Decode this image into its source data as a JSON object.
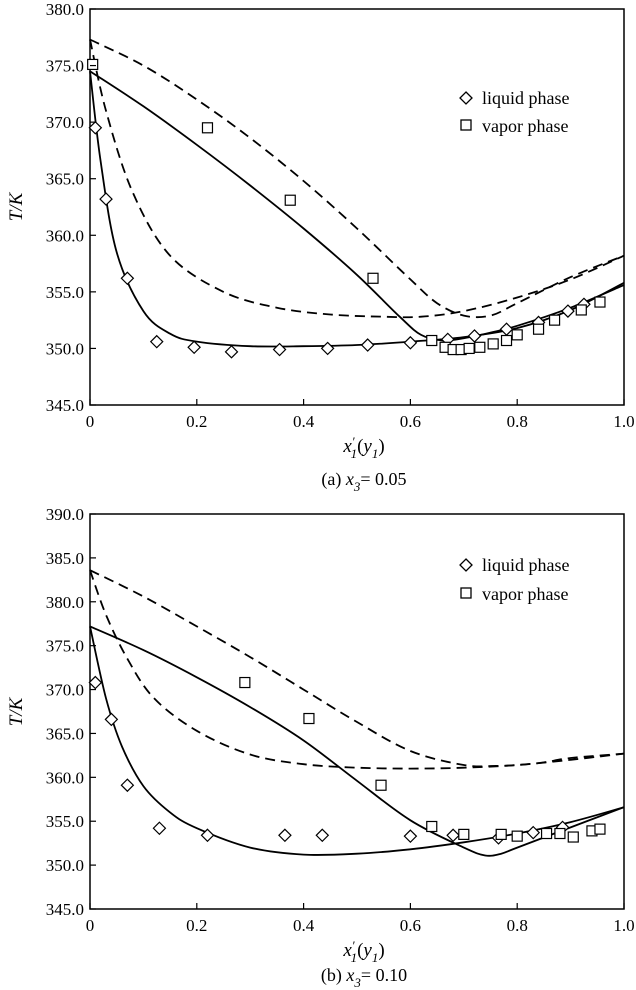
{
  "chart_data": [
    {
      "type": "line",
      "panel_caption": {
        "prefix": "(a) ",
        "var": "x",
        "sub": "3",
        "value": "= 0.05"
      },
      "xlabel": {
        "main": "x",
        "prime": "′",
        "sub": "1",
        "paren": "(",
        "ymain": "y",
        "ysub": "1",
        "close": ")"
      },
      "ylabel": "T/K",
      "xlim": [
        0,
        1.0
      ],
      "ylim": [
        345.0,
        380.0
      ],
      "xticks": [
        "0",
        "0.2",
        "0.4",
        "0.6",
        "0.8",
        "1.0"
      ],
      "xtick_values": [
        0,
        0.2,
        0.4,
        0.6,
        0.8,
        1.0
      ],
      "yticks": [
        "345.0",
        "350.0",
        "355.0",
        "360.0",
        "365.0",
        "370.0",
        "375.0",
        "380.0"
      ],
      "ytick_values": [
        345,
        350,
        355,
        360,
        365,
        370,
        375,
        380
      ],
      "legend": {
        "position": "top-right",
        "items": [
          {
            "label": "liquid phase",
            "marker": "diamond"
          },
          {
            "label": "vapor phase",
            "marker": "square"
          }
        ]
      },
      "series": [
        {
          "role": "liquid phase",
          "marker": "diamond",
          "x": [
            0.01,
            0.03,
            0.07,
            0.125,
            0.195,
            0.265,
            0.355,
            0.445,
            0.52,
            0.6,
            0.67,
            0.72,
            0.78,
            0.84,
            0.895,
            0.925
          ],
          "y": [
            369.5,
            363.2,
            356.2,
            350.6,
            350.1,
            349.7,
            349.9,
            350.0,
            350.3,
            350.5,
            350.8,
            351.1,
            351.7,
            352.3,
            353.3,
            353.9
          ]
        },
        {
          "role": "vapor phase",
          "marker": "square",
          "x": [
            0.005,
            0.22,
            0.375,
            0.53,
            0.64,
            0.665,
            0.68,
            0.695,
            0.71,
            0.73,
            0.755,
            0.78,
            0.8,
            0.84,
            0.87,
            0.92,
            0.955
          ],
          "y": [
            375.1,
            369.5,
            363.1,
            356.2,
            350.7,
            350.1,
            349.9,
            349.9,
            350.0,
            350.1,
            350.4,
            350.7,
            351.2,
            351.7,
            352.5,
            353.4,
            354.1
          ]
        },
        {
          "role": "liquid curve",
          "style": "solid",
          "x": [
            0,
            0.02,
            0.05,
            0.1,
            0.15,
            0.2,
            0.3,
            0.4,
            0.5,
            0.6,
            0.7,
            0.8,
            0.9,
            1.0
          ],
          "y": [
            374.5,
            366.5,
            358.5,
            353.3,
            351.3,
            350.6,
            350.2,
            350.2,
            350.3,
            350.6,
            351.0,
            351.8,
            353.4,
            355.8
          ]
        },
        {
          "role": "vapor curve",
          "style": "solid",
          "x": [
            0,
            0.1,
            0.2,
            0.3,
            0.4,
            0.5,
            0.58,
            0.62,
            0.66,
            0.7,
            0.75,
            0.8,
            0.9,
            1.0
          ],
          "y": [
            374.5,
            371.4,
            368.0,
            364.4,
            360.6,
            356.5,
            352.8,
            351.2,
            350.7,
            350.9,
            351.4,
            352.0,
            353.6,
            355.6
          ]
        },
        {
          "role": "liquid curve",
          "style": "dashed",
          "x": [
            0,
            0.03,
            0.08,
            0.15,
            0.25,
            0.35,
            0.45,
            0.55,
            0.62,
            0.7,
            0.8,
            0.9,
            1.0
          ],
          "y": [
            377.3,
            371.0,
            363.8,
            358.2,
            355.0,
            353.6,
            353.0,
            352.8,
            352.8,
            353.3,
            354.5,
            356.1,
            358.2
          ]
        },
        {
          "role": "vapor curve",
          "style": "dashed",
          "x": [
            0,
            0.1,
            0.2,
            0.3,
            0.4,
            0.5,
            0.6,
            0.65,
            0.7,
            0.75,
            0.8,
            0.9,
            1.0
          ],
          "y": [
            377.3,
            375.0,
            372.0,
            368.6,
            364.8,
            360.6,
            356.1,
            354.0,
            352.9,
            352.9,
            354.0,
            356.3,
            358.2
          ]
        }
      ]
    },
    {
      "type": "line",
      "panel_caption": {
        "prefix": "(b) ",
        "var": "x",
        "sub": "3",
        "value": "= 0.10"
      },
      "xlabel": {
        "main": "x",
        "prime": "′",
        "sub": "1",
        "paren": "(",
        "ymain": "y",
        "ysub": "1",
        "close": ")"
      },
      "ylabel": "T/K",
      "xlim": [
        0,
        1.0
      ],
      "ylim": [
        345.0,
        390.0
      ],
      "xticks": [
        "0",
        "0.2",
        "0.4",
        "0.6",
        "0.8",
        "1.0"
      ],
      "xtick_values": [
        0,
        0.2,
        0.4,
        0.6,
        0.8,
        1.0
      ],
      "yticks": [
        "345.0",
        "350.0",
        "355.0",
        "360.0",
        "365.0",
        "370.0",
        "375.0",
        "380.0",
        "385.0",
        "390.0"
      ],
      "ytick_values": [
        345,
        350,
        355,
        360,
        365,
        370,
        375,
        380,
        385,
        390
      ],
      "legend": {
        "position": "top-right",
        "items": [
          {
            "label": "liquid phase",
            "marker": "diamond"
          },
          {
            "label": "vapor phase",
            "marker": "square"
          }
        ]
      },
      "series": [
        {
          "role": "liquid phase",
          "marker": "diamond",
          "x": [
            0.01,
            0.04,
            0.07,
            0.13,
            0.22,
            0.365,
            0.435,
            0.6,
            0.68,
            0.765,
            0.83,
            0.885
          ],
          "y": [
            370.8,
            366.6,
            359.1,
            354.2,
            353.4,
            353.4,
            353.4,
            353.3,
            353.4,
            353.1,
            353.7,
            354.3
          ]
        },
        {
          "role": "vapor phase",
          "marker": "square",
          "x": [
            0.29,
            0.41,
            0.545,
            0.64,
            0.7,
            0.77,
            0.8,
            0.855,
            0.88,
            0.905,
            0.94,
            0.955
          ],
          "y": [
            370.8,
            366.7,
            359.1,
            354.4,
            353.5,
            353.5,
            353.3,
            353.6,
            353.6,
            353.2,
            353.9,
            354.1
          ]
        },
        {
          "role": "liquid curve",
          "style": "solid",
          "x": [
            0,
            0.03,
            0.06,
            0.1,
            0.15,
            0.2,
            0.3,
            0.4,
            0.5,
            0.6,
            0.7,
            0.8,
            0.9,
            1.0
          ],
          "y": [
            377.2,
            369.0,
            363.5,
            359.0,
            356.0,
            354.2,
            352.0,
            351.2,
            351.3,
            351.8,
            352.6,
            353.6,
            354.9,
            356.6
          ]
        },
        {
          "role": "vapor curve",
          "style": "solid",
          "x": [
            0,
            0.1,
            0.2,
            0.3,
            0.4,
            0.5,
            0.6,
            0.7,
            0.74,
            0.77,
            0.8,
            0.9,
            1.0
          ],
          "y": [
            377.2,
            374.5,
            371.4,
            368.0,
            364.2,
            359.6,
            355.1,
            352.0,
            351.1,
            351.3,
            352.0,
            354.3,
            356.6
          ]
        },
        {
          "role": "liquid curve",
          "style": "dashed",
          "x": [
            0,
            0.03,
            0.07,
            0.12,
            0.2,
            0.3,
            0.4,
            0.5,
            0.6,
            0.7,
            0.8,
            0.9,
            1.0
          ],
          "y": [
            383.6,
            378.5,
            373.5,
            369.0,
            365.3,
            362.6,
            361.5,
            361.1,
            361.0,
            361.1,
            361.4,
            362.0,
            362.7
          ]
        },
        {
          "role": "vapor curve",
          "style": "dashed",
          "x": [
            0,
            0.1,
            0.2,
            0.3,
            0.4,
            0.5,
            0.6,
            0.7,
            0.76,
            0.8,
            0.85,
            0.9,
            1.0
          ],
          "y": [
            383.6,
            380.6,
            377.2,
            373.7,
            370.0,
            366.3,
            363.0,
            361.4,
            361.3,
            361.4,
            361.7,
            362.2,
            362.7
          ]
        }
      ]
    }
  ]
}
